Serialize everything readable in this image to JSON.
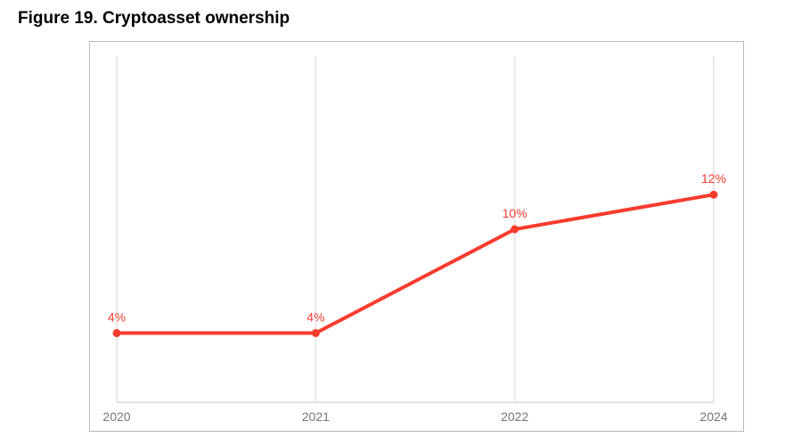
{
  "figure": {
    "title": "Figure 19. Cryptoasset ownership"
  },
  "chart_data": {
    "type": "line",
    "title": "Figure 19. Cryptoasset ownership",
    "categories": [
      "2020",
      "2021",
      "2022",
      "2024"
    ],
    "series": [
      {
        "name": "Cryptoasset ownership",
        "values": [
          4,
          4,
          10,
          12
        ],
        "point_labels": [
          "4%",
          "4%",
          "10%",
          "12%"
        ],
        "color": "#f83c2d"
      }
    ],
    "xlabel": "",
    "ylabel": "",
    "ylim": [
      0,
      20
    ],
    "grid": "vertical-only",
    "legend_position": "none",
    "colors": {
      "line": "#f83c2d",
      "marker": "#f83c2d",
      "value_label": "#f83c2d",
      "gridline": "#e8e8e8",
      "axis_line": "#e2e2e2",
      "tick_label": "#757575",
      "frame_border": "#b7b7b7",
      "title": "#000000"
    }
  }
}
